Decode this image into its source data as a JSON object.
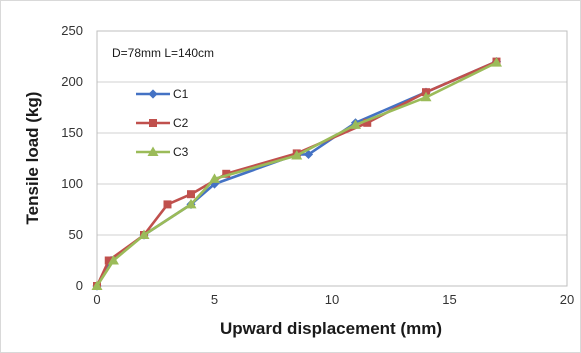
{
  "chart_data": {
    "type": "line",
    "title": "",
    "annotation": "D=78mm  L=140cm",
    "xlabel": "Upward displacement (mm)",
    "ylabel": "Tensile load (kg)",
    "xlim": [
      0,
      20
    ],
    "ylim": [
      0,
      250
    ],
    "xticks": [
      0,
      5,
      10,
      15,
      20
    ],
    "yticks": [
      0,
      50,
      100,
      150,
      200,
      250
    ],
    "grid": "horizontal",
    "legend_placement": "upper-left",
    "series": [
      {
        "name": "C1",
        "color": "#4472C4",
        "marker": "diamond",
        "x": [
          0,
          0.6,
          2,
          4,
          5,
          8.5,
          9,
          11,
          14,
          17
        ],
        "y": [
          0,
          25,
          50,
          80,
          100,
          129,
          129,
          160,
          190,
          220
        ]
      },
      {
        "name": "C2",
        "color": "#C0504D",
        "marker": "square",
        "x": [
          0,
          0.5,
          2,
          3,
          4,
          5.5,
          8.5,
          11.5,
          14,
          17
        ],
        "y": [
          0,
          25,
          50,
          80,
          90,
          110,
          130,
          160,
          190,
          220
        ]
      },
      {
        "name": "C3",
        "color": "#9BBB59",
        "marker": "triangle",
        "x": [
          0,
          0.7,
          2,
          4,
          5,
          8.5,
          11,
          14,
          17
        ],
        "y": [
          0,
          25,
          50,
          80,
          105,
          128,
          158,
          185,
          219
        ]
      }
    ]
  }
}
